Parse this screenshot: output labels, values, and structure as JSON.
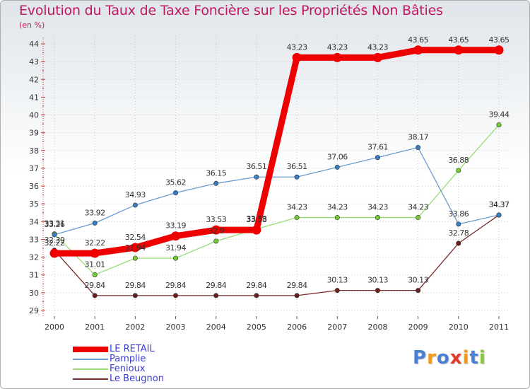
{
  "chart_data": {
    "type": "line",
    "title": "Evolution du Taux de Taxe Foncière sur les Propriétés Non Bâties",
    "ylabel": "(en %)",
    "xlabel": "",
    "categories": [
      "2000",
      "2001",
      "2002",
      "2003",
      "2004",
      "2005",
      "2006",
      "2007",
      "2008",
      "2009",
      "2010",
      "2011"
    ],
    "ylim": [
      29,
      44
    ],
    "yticks": [
      29,
      30,
      31,
      32,
      33,
      34,
      35,
      36,
      37,
      38,
      39,
      40,
      41,
      42,
      43,
      44
    ],
    "grid": true,
    "legend_position": "bottom-left",
    "series": [
      {
        "name": "LE RETAIL",
        "color": "#ee0000",
        "line_width": 9,
        "marker": "#ee0000",
        "values": [
          32.22,
          32.22,
          32.54,
          33.19,
          33.53,
          33.53,
          43.23,
          43.23,
          43.23,
          43.65,
          43.65,
          43.65
        ],
        "labels": [
          "32.22",
          "32.22",
          "32.54",
          "33.19",
          "33.53",
          "33.53",
          "43.23",
          "43.23",
          "43.23",
          "43.65",
          "43.65",
          "43.65"
        ]
      },
      {
        "name": "Pamplie",
        "color": "#6a9bd2",
        "line_width": 1.3,
        "marker": "#3b7dc4",
        "values": [
          33.26,
          33.92,
          34.93,
          35.62,
          36.15,
          36.51,
          36.51,
          37.06,
          37.61,
          38.17,
          33.86,
          34.37
        ],
        "labels": [
          "33.26",
          "33.92",
          "34.93",
          "35.62",
          "36.15",
          "36.51",
          "36.51",
          "37.06",
          "37.61",
          "38.17",
          "33.86",
          "34.37"
        ]
      },
      {
        "name": "Fenioux",
        "color": "#99dd77",
        "line_width": 1.3,
        "marker": "#77cc33",
        "values": [
          33.31,
          31.01,
          31.94,
          31.94,
          32.9,
          33.58,
          34.23,
          34.23,
          34.23,
          34.23,
          36.88,
          39.44
        ],
        "labels": [
          "33.31",
          "31.01",
          "31.94",
          "31.94",
          "32.9",
          "33.58",
          "34.23",
          "34.23",
          "34.23",
          "34.23",
          "36.88",
          "39.44"
        ]
      },
      {
        "name": "Le Beugnon",
        "color": "#7a2a2a",
        "line_width": 1.3,
        "marker": "#6b1f1f",
        "values": [
          32.39,
          29.84,
          29.84,
          29.84,
          29.84,
          29.84,
          29.84,
          30.13,
          30.13,
          30.13,
          32.78,
          34.37
        ],
        "labels": [
          "32.39",
          "29.84",
          "29.84",
          "29.84",
          "29.84",
          "29.84",
          "29.84",
          "30.13",
          "30.13",
          "30.13",
          "32.78",
          "34.37"
        ]
      }
    ]
  },
  "logo": {
    "letters": [
      "P",
      "r",
      "o",
      "x",
      "i",
      "t",
      "i"
    ],
    "colors": [
      "#4a7fd6",
      "#f39a1c",
      "#4a7fd6",
      "#e03a2a",
      "#f39a1c",
      "#4a7fd6",
      "#8cc63f"
    ]
  }
}
